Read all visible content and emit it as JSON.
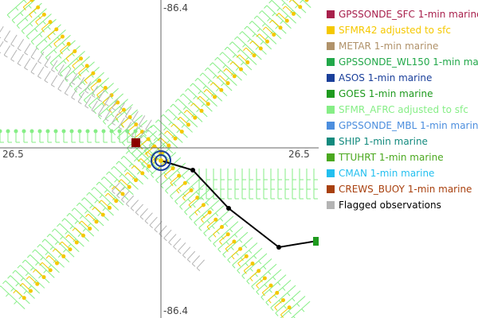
{
  "axes": {
    "top": "-86.4",
    "bottom": "-86.4",
    "left": "26.5",
    "right": "26.5"
  },
  "legend": [
    {
      "label": "GPSSONDE_SFC 1-min marine",
      "color": "#a8204c"
    },
    {
      "label": "SFMR42 adjusted to sfc",
      "color": "#f5c800"
    },
    {
      "label": "METAR 1-min marine",
      "color": "#b0926a"
    },
    {
      "label": "GPSSONDE_WL150 1-min mar",
      "color": "#22a84a"
    },
    {
      "label": "ASOS 1-min marine",
      "color": "#1a3f9a"
    },
    {
      "label": "GOES 1-min marine",
      "color": "#1e9a1e"
    },
    {
      "label": "SFMR_AFRC adjusted to sfc",
      "color": "#86ee86"
    },
    {
      "label": "GPSSONDE_MBL 1-min marine",
      "color": "#4c8ede"
    },
    {
      "label": "SHIP 1-min marine",
      "color": "#138a7e"
    },
    {
      "label": "TTUHRT 1-min marine",
      "color": "#4aa81e"
    },
    {
      "label": "CMAN 1-min marine",
      "color": "#22bfef"
    },
    {
      "label": "CREWS_BUOY 1-min marine",
      "color": "#a8400e"
    },
    {
      "label": "Flagged observations",
      "color": "#b4b4b4"
    }
  ]
}
